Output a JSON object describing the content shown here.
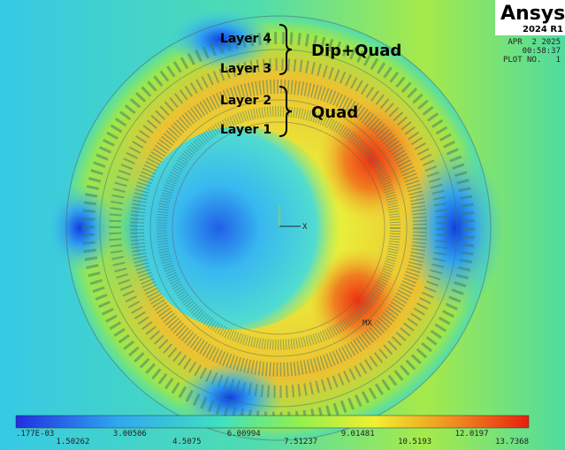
{
  "logo": {
    "brand": "Ansys",
    "version": "2024 R1"
  },
  "plot_info": {
    "date": "APR  2 2025",
    "time": "00:58:37",
    "plot_no": "PLOT NO.   1"
  },
  "annotations": {
    "layers": [
      "Layer 4",
      "Layer 3",
      "Layer 2",
      "Layer 1"
    ],
    "groups": [
      "Dip+Quad",
      "Quad"
    ]
  },
  "axis_label": "X",
  "max_label": "MX",
  "legend": {
    "labels": [
      ".177E-03",
      "1.50262",
      "3.00506",
      "4.5075",
      "6.00994",
      "7.51237",
      "9.01481",
      "10.5193",
      "12.0197",
      "13.7368"
    ]
  }
}
